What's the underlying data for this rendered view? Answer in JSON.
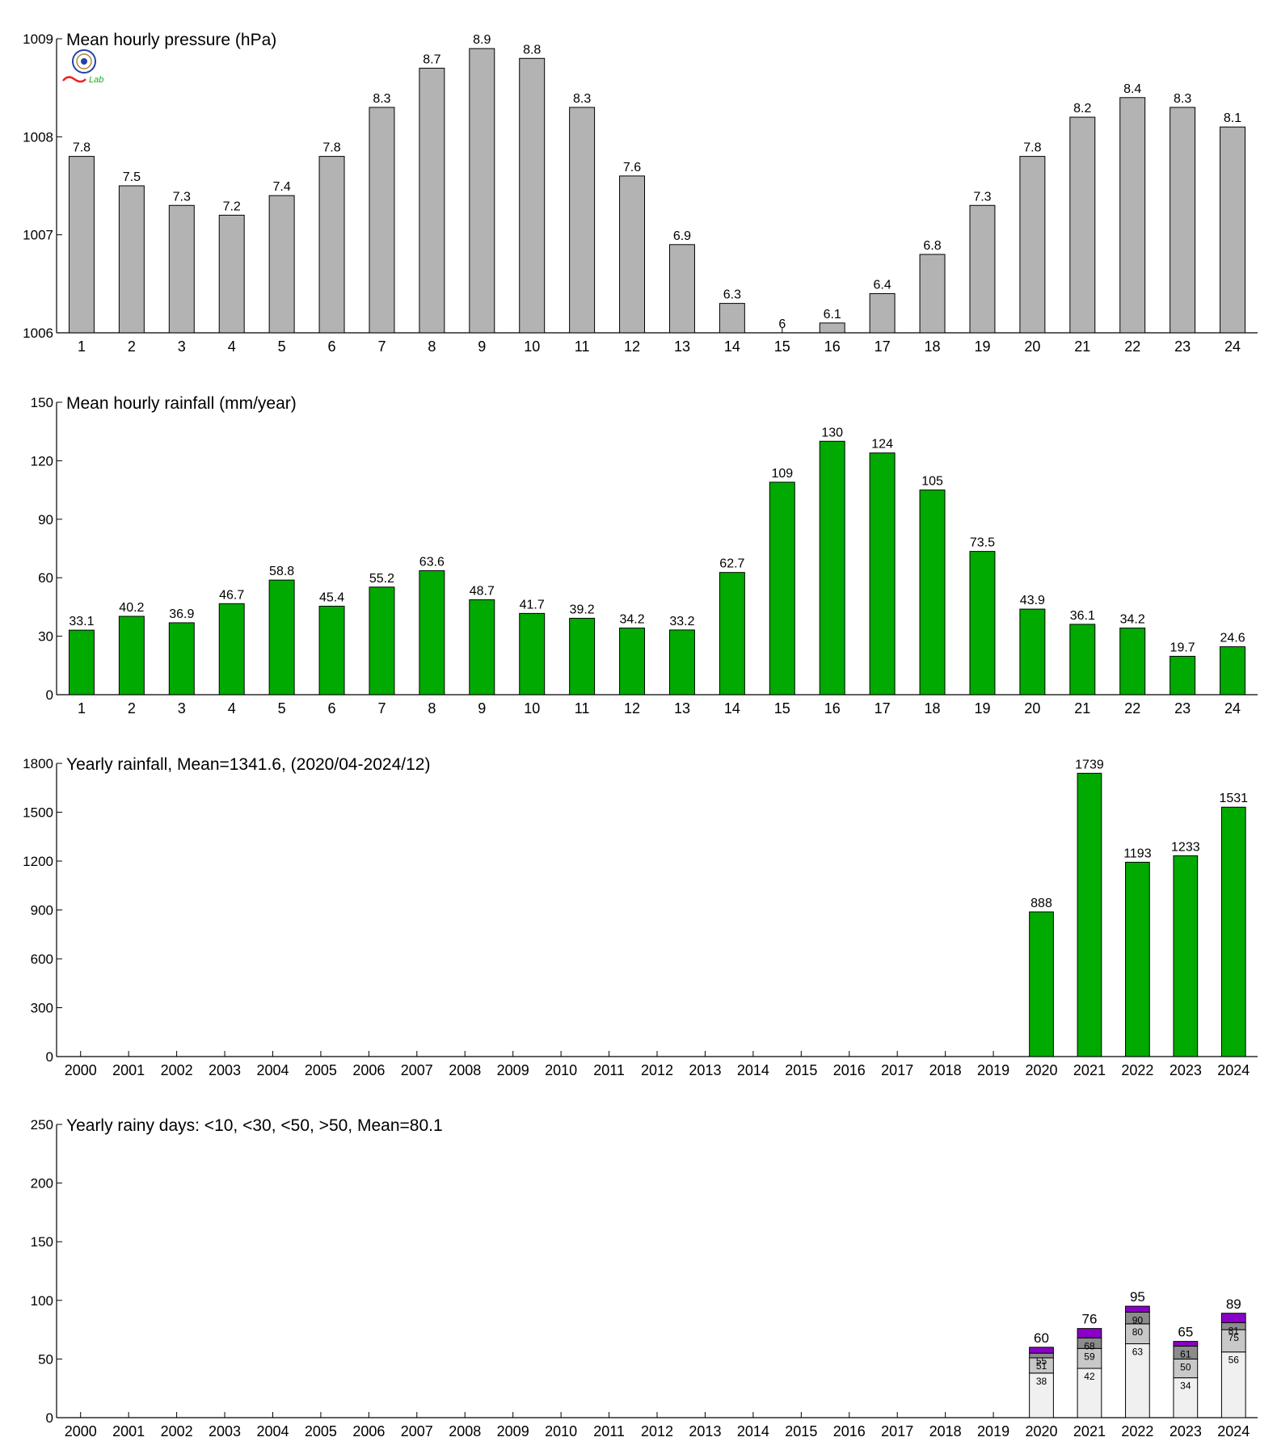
{
  "logo": {
    "name": "weather-lab-logo",
    "text": "Lab"
  },
  "colors": {
    "gray": "#b3b3b3",
    "green": "#00aa00",
    "purple": "#8b00c8",
    "white_bar": "#f0f0f0",
    "axis": "#000000"
  },
  "chart_data": [
    {
      "type": "bar",
      "title": "Mean hourly pressure (hPa)",
      "categories": [
        "1",
        "2",
        "3",
        "4",
        "5",
        "6",
        "7",
        "8",
        "9",
        "10",
        "11",
        "12",
        "13",
        "14",
        "15",
        "16",
        "17",
        "18",
        "19",
        "20",
        "21",
        "22",
        "23",
        "24"
      ],
      "values": [
        1007.8,
        1007.5,
        1007.3,
        1007.2,
        1007.4,
        1007.8,
        1008.3,
        1008.7,
        1008.9,
        1008.8,
        1008.3,
        1007.6,
        1006.9,
        1006.3,
        1006.0,
        1006.1,
        1006.4,
        1006.8,
        1007.3,
        1007.8,
        1008.2,
        1008.4,
        1008.3,
        1008.1
      ],
      "labels": [
        "7.8",
        "7.5",
        "7.3",
        "7.2",
        "7.4",
        "7.8",
        "8.3",
        "8.7",
        "8.9",
        "8.8",
        "8.3",
        "7.6",
        "6.9",
        "6.3",
        "6",
        "6.1",
        "6.4",
        "6.8",
        "7.3",
        "7.8",
        "8.2",
        "8.4",
        "8.3",
        "8.1"
      ],
      "ylim": [
        1006,
        1009
      ],
      "yticks": [
        1006,
        1007,
        1008,
        1009
      ],
      "color": "#b3b3b3"
    },
    {
      "type": "bar",
      "title": "Mean hourly rainfall (mm/year)",
      "categories": [
        "1",
        "2",
        "3",
        "4",
        "5",
        "6",
        "7",
        "8",
        "9",
        "10",
        "11",
        "12",
        "13",
        "14",
        "15",
        "16",
        "17",
        "18",
        "19",
        "20",
        "21",
        "22",
        "23",
        "24"
      ],
      "values": [
        33.1,
        40.2,
        36.9,
        46.7,
        58.8,
        45.4,
        55.2,
        63.6,
        48.7,
        41.7,
        39.2,
        34.2,
        33.2,
        62.7,
        109,
        130,
        124,
        105,
        73.5,
        43.9,
        36.1,
        34.2,
        19.7,
        24.6
      ],
      "labels": [
        "33.1",
        "40.2",
        "36.9",
        "46.7",
        "58.8",
        "45.4",
        "55.2",
        "63.6",
        "48.7",
        "41.7",
        "39.2",
        "34.2",
        "33.2",
        "62.7",
        "109",
        "130",
        "124",
        "105",
        "73.5",
        "43.9",
        "36.1",
        "34.2",
        "19.7",
        "24.6"
      ],
      "ylim": [
        0,
        150
      ],
      "yticks": [
        0,
        30,
        60,
        90,
        120,
        150
      ],
      "color": "#00aa00"
    },
    {
      "type": "bar",
      "title": "Yearly rainfall, Mean=1341.6, (2020/04-2024/12)",
      "categories": [
        "2000",
        "2001",
        "2002",
        "2003",
        "2004",
        "2005",
        "2006",
        "2007",
        "2008",
        "2009",
        "2010",
        "2011",
        "2012",
        "2013",
        "2014",
        "2015",
        "2016",
        "2017",
        "2018",
        "2019",
        "2020",
        "2021",
        "2022",
        "2023",
        "2024"
      ],
      "values": [
        null,
        null,
        null,
        null,
        null,
        null,
        null,
        null,
        null,
        null,
        null,
        null,
        null,
        null,
        null,
        null,
        null,
        null,
        null,
        null,
        888,
        1739,
        1193,
        1233,
        1531
      ],
      "labels": [
        "",
        "",
        "",
        "",
        "",
        "",
        "",
        "",
        "",
        "",
        "",
        "",
        "",
        "",
        "",
        "",
        "",
        "",
        "",
        "",
        "888",
        "1739",
        "1193",
        "1233",
        "1531"
      ],
      "ylim": [
        0,
        1800
      ],
      "yticks": [
        0,
        300,
        600,
        900,
        1200,
        1500,
        1800
      ],
      "color": "#00aa00"
    },
    {
      "type": "stacked-bar",
      "title": "Yearly rainy days: <10, <30, <50, >50, Mean=80.1",
      "categories": [
        "2000",
        "2001",
        "2002",
        "2003",
        "2004",
        "2005",
        "2006",
        "2007",
        "2008",
        "2009",
        "2010",
        "2011",
        "2012",
        "2013",
        "2014",
        "2015",
        "2016",
        "2017",
        "2018",
        "2019",
        "2020",
        "2021",
        "2022",
        "2023",
        "2024"
      ],
      "cumulative": [
        null,
        null,
        null,
        null,
        null,
        null,
        null,
        null,
        null,
        null,
        null,
        null,
        null,
        null,
        null,
        null,
        null,
        null,
        null,
        null,
        [
          38,
          51,
          55,
          60
        ],
        [
          42,
          59,
          68,
          76
        ],
        [
          63,
          80,
          90,
          95
        ],
        [
          34,
          50,
          61,
          65
        ],
        [
          56,
          75,
          81,
          89
        ]
      ],
      "inner_labels": [
        null,
        null,
        null,
        null,
        null,
        null,
        null,
        null,
        null,
        null,
        null,
        null,
        null,
        null,
        null,
        null,
        null,
        null,
        null,
        null,
        [
          "38",
          "51",
          "55"
        ],
        [
          "42",
          "59",
          "68"
        ],
        [
          "63",
          "80",
          "90"
        ],
        [
          "34",
          "50",
          "61"
        ],
        [
          "56",
          "75",
          "81"
        ]
      ],
      "totals": [
        "",
        "",
        "",
        "",
        "",
        "",
        "",
        "",
        "",
        "",
        "",
        "",
        "",
        "",
        "",
        "",
        "",
        "",
        "",
        "",
        "60",
        "76",
        "95",
        "65",
        "89"
      ],
      "segment_colors": [
        "#f0f0f0",
        "#c8c8c8",
        "#8c8c8c",
        "#8b00c8"
      ],
      "ylim": [
        0,
        250
      ],
      "yticks": [
        0,
        50,
        100,
        150,
        200,
        250
      ]
    }
  ]
}
